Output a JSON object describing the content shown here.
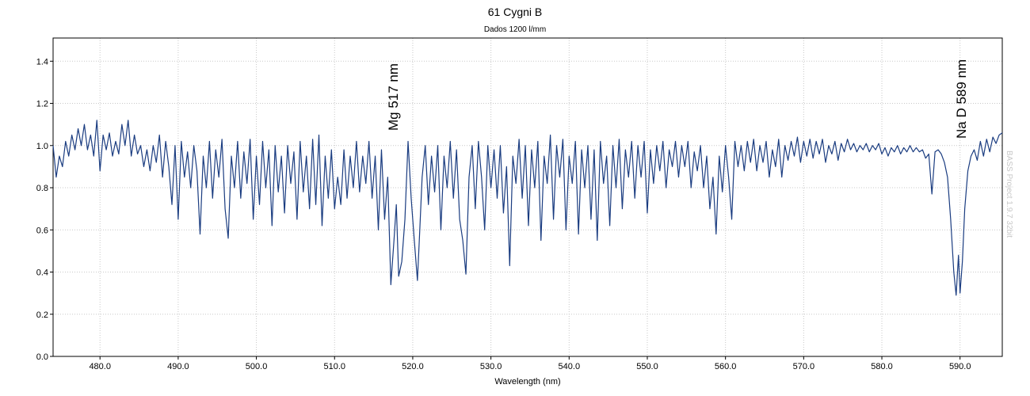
{
  "chart_data": {
    "type": "line",
    "title": "61 Cygni B",
    "subtitle": "Dados 1200 l/mm",
    "xlabel": "Wavelength (nm)",
    "annotations": [
      "Mg 517 nm",
      "Na D 589 nm"
    ],
    "watermark": "BASS Project 1.9.7 32bit",
    "xlim": [
      474.0,
      595.4
    ],
    "ylim": [
      0,
      1.51
    ],
    "xticks": [
      {
        "value": 480,
        "label": "480.0"
      },
      {
        "value": 490,
        "label": "490.0"
      },
      {
        "value": 500,
        "label": "500.0"
      },
      {
        "value": 510,
        "label": "510.0"
      },
      {
        "value": 520,
        "label": "520.0"
      },
      {
        "value": 530,
        "label": "530.0"
      },
      {
        "value": 540,
        "label": "540.0"
      },
      {
        "value": 550,
        "label": "550.0"
      },
      {
        "value": 560,
        "label": "560.0"
      },
      {
        "value": 570,
        "label": "570.0"
      },
      {
        "value": 580,
        "label": "580.0"
      },
      {
        "value": 590,
        "label": "590.0"
      }
    ],
    "yticks": [
      {
        "value": 0,
        "label": "0.0"
      },
      0.2,
      0.4,
      0.6,
      0.8,
      {
        "value": 1,
        "label": "1.0"
      },
      1.2,
      1.4
    ],
    "grid": true,
    "x": [
      474.0,
      474.4,
      474.8,
      475.2,
      475.6,
      476.0,
      476.4,
      476.8,
      477.2,
      477.6,
      478.0,
      478.4,
      478.8,
      479.2,
      479.6,
      480.0,
      480.4,
      480.8,
      481.2,
      481.6,
      482.0,
      482.4,
      482.8,
      483.2,
      483.6,
      484.0,
      484.4,
      484.8,
      485.2,
      485.6,
      486.0,
      486.4,
      486.8,
      487.2,
      487.6,
      488.0,
      488.4,
      488.8,
      489.2,
      489.6,
      490.0,
      490.4,
      490.8,
      491.2,
      491.6,
      492.0,
      492.4,
      492.8,
      493.2,
      493.6,
      494.0,
      494.4,
      494.8,
      495.2,
      495.6,
      496.0,
      496.4,
      496.8,
      497.2,
      497.6,
      498.0,
      498.4,
      498.8,
      499.2,
      499.6,
      500.0,
      500.4,
      500.8,
      501.2,
      501.6,
      502.0,
      502.4,
      502.8,
      503.2,
      503.6,
      504.0,
      504.4,
      504.8,
      505.2,
      505.6,
      506.0,
      506.4,
      506.8,
      507.2,
      507.6,
      508.0,
      508.4,
      508.8,
      509.2,
      509.6,
      510.0,
      510.4,
      510.8,
      511.2,
      511.6,
      512.0,
      512.4,
      512.8,
      513.2,
      513.6,
      514.0,
      514.4,
      514.8,
      515.2,
      515.6,
      516.0,
      516.4,
      516.8,
      517.2,
      517.6,
      517.9,
      518.2,
      518.6,
      519.0,
      519.4,
      519.8,
      520.2,
      520.6,
      520.9,
      521.2,
      521.6,
      522.0,
      522.4,
      522.8,
      523.2,
      523.6,
      524.0,
      524.4,
      524.8,
      525.2,
      525.6,
      526.0,
      526.4,
      526.8,
      527.2,
      527.6,
      528.0,
      528.4,
      528.8,
      529.2,
      529.6,
      530.0,
      530.4,
      530.8,
      531.2,
      531.6,
      532.0,
      532.4,
      532.8,
      533.2,
      533.6,
      534.0,
      534.4,
      534.8,
      535.2,
      535.6,
      536.0,
      536.4,
      536.8,
      537.2,
      537.6,
      538.0,
      538.4,
      538.8,
      539.2,
      539.6,
      540.0,
      540.4,
      540.8,
      541.2,
      541.6,
      542.0,
      542.4,
      542.8,
      543.2,
      543.6,
      544.0,
      544.4,
      544.8,
      545.2,
      545.6,
      546.0,
      546.4,
      546.8,
      547.2,
      547.6,
      548.0,
      548.4,
      548.8,
      549.2,
      549.6,
      550.0,
      550.4,
      550.8,
      551.2,
      551.6,
      552.0,
      552.4,
      552.8,
      553.2,
      553.6,
      554.0,
      554.4,
      554.8,
      555.2,
      555.6,
      556.0,
      556.4,
      556.8,
      557.2,
      557.6,
      558.0,
      558.4,
      558.8,
      559.2,
      559.6,
      560.0,
      560.4,
      560.8,
      561.2,
      561.6,
      562.0,
      562.4,
      562.8,
      563.2,
      563.6,
      564.0,
      564.4,
      564.8,
      565.2,
      565.6,
      566.0,
      566.4,
      566.8,
      567.2,
      567.6,
      568.0,
      568.4,
      568.8,
      569.2,
      569.6,
      570.0,
      570.4,
      570.8,
      571.2,
      571.6,
      572.0,
      572.4,
      572.8,
      573.2,
      573.6,
      574.0,
      574.4,
      574.8,
      575.2,
      575.6,
      576.0,
      576.4,
      576.8,
      577.2,
      577.6,
      578.0,
      578.4,
      578.8,
      579.2,
      579.6,
      580.0,
      580.4,
      580.8,
      581.2,
      581.6,
      582.0,
      582.4,
      582.8,
      583.2,
      583.6,
      584.0,
      584.4,
      584.8,
      585.2,
      585.6,
      586.0,
      586.4,
      586.8,
      587.2,
      587.6,
      588.0,
      588.4,
      588.8,
      589.2,
      589.5,
      589.8,
      590.0,
      590.3,
      590.6,
      591.0,
      591.4,
      591.8,
      592.2,
      592.6,
      593.0,
      593.4,
      593.8,
      594.2,
      594.6,
      595.0,
      595.4
    ],
    "series": [
      {
        "color": "#1a3c80",
        "values": [
          1.0,
          0.85,
          0.95,
          0.9,
          1.02,
          0.95,
          1.05,
          0.98,
          1.08,
          1.0,
          1.1,
          0.98,
          1.05,
          0.95,
          1.12,
          0.88,
          1.05,
          0.98,
          1.06,
          0.95,
          1.02,
          0.96,
          1.1,
          1.0,
          1.12,
          0.95,
          1.05,
          0.96,
          1.0,
          0.9,
          0.98,
          0.88,
          1.0,
          0.92,
          1.05,
          0.85,
          1.02,
          0.9,
          0.72,
          1.0,
          0.65,
          1.02,
          0.85,
          0.97,
          0.8,
          1.0,
          0.88,
          0.58,
          0.95,
          0.8,
          1.02,
          0.75,
          0.98,
          0.85,
          1.03,
          0.7,
          0.56,
          0.95,
          0.8,
          1.02,
          0.75,
          0.97,
          0.82,
          1.03,
          0.65,
          0.95,
          0.72,
          1.02,
          0.8,
          0.98,
          0.62,
          1.0,
          0.78,
          0.95,
          0.68,
          1.0,
          0.82,
          0.97,
          0.65,
          1.02,
          0.78,
          0.95,
          0.7,
          1.03,
          0.72,
          1.05,
          0.62,
          0.95,
          0.75,
          0.98,
          0.7,
          0.85,
          0.72,
          0.98,
          0.75,
          0.95,
          0.8,
          1.02,
          0.78,
          0.95,
          0.82,
          1.02,
          0.75,
          0.95,
          0.6,
          0.98,
          0.65,
          0.85,
          0.34,
          0.55,
          0.72,
          0.38,
          0.45,
          0.65,
          1.02,
          0.75,
          0.55,
          0.36,
          0.6,
          0.85,
          1.0,
          0.72,
          0.95,
          0.78,
          1.0,
          0.6,
          0.95,
          0.8,
          1.02,
          0.75,
          0.98,
          0.65,
          0.55,
          0.39,
          0.85,
          1.0,
          0.7,
          1.02,
          0.85,
          0.6,
          1.0,
          0.8,
          0.98,
          0.75,
          1.0,
          0.68,
          0.9,
          0.43,
          0.95,
          0.82,
          1.03,
          0.75,
          1.0,
          0.62,
          0.98,
          0.8,
          1.02,
          0.55,
          0.95,
          0.82,
          1.05,
          0.65,
          1.0,
          0.85,
          1.03,
          0.6,
          0.95,
          0.82,
          1.02,
          0.58,
          0.98,
          0.8,
          1.0,
          0.65,
          0.98,
          0.55,
          1.02,
          0.82,
          0.95,
          0.62,
          1.0,
          0.8,
          1.03,
          0.7,
          0.98,
          0.85,
          1.02,
          0.75,
          1.0,
          0.85,
          1.02,
          0.68,
          0.98,
          0.82,
          1.0,
          0.88,
          1.02,
          0.8,
          0.98,
          0.9,
          1.02,
          0.85,
          1.0,
          0.9,
          1.02,
          0.8,
          0.97,
          0.88,
          1.0,
          0.8,
          0.95,
          0.7,
          0.85,
          0.58,
          0.95,
          0.78,
          1.0,
          0.85,
          0.65,
          1.02,
          0.9,
          1.0,
          0.88,
          1.02,
          0.92,
          1.03,
          0.88,
          1.0,
          0.92,
          1.02,
          0.85,
          0.98,
          0.9,
          1.03,
          0.85,
          1.0,
          0.93,
          1.02,
          0.95,
          1.04,
          0.92,
          1.02,
          0.95,
          1.03,
          0.94,
          1.02,
          0.96,
          1.03,
          0.92,
          1.0,
          0.96,
          1.02,
          0.93,
          1.01,
          0.97,
          1.03,
          0.98,
          1.01,
          0.97,
          1.0,
          0.98,
          1.01,
          0.97,
          1.0,
          0.98,
          1.01,
          0.96,
          0.99,
          0.95,
          0.99,
          0.97,
          1.0,
          0.96,
          0.99,
          0.97,
          1.0,
          0.97,
          0.99,
          0.97,
          0.98,
          0.94,
          0.96,
          0.77,
          0.97,
          0.98,
          0.96,
          0.92,
          0.85,
          0.65,
          0.4,
          0.29,
          0.48,
          0.3,
          0.45,
          0.7,
          0.88,
          0.95,
          0.98,
          0.93,
          1.02,
          0.95,
          1.03,
          0.97,
          1.04,
          1.01,
          1.05,
          1.06
        ]
      }
    ]
  }
}
